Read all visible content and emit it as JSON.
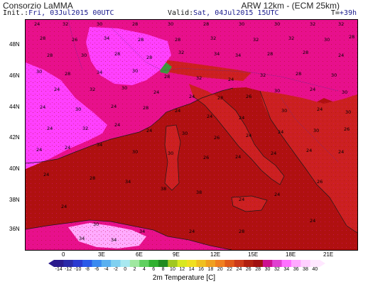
{
  "header": {
    "title_left": "Consorzio LaMMA",
    "title_right": "ARW 12km - (ECM 25km)",
    "init_label": "Init.:",
    "init_value": "Fri, 03Jul2015 00UTC",
    "valid_label": "Valid:",
    "valid_value": "Sat, 04Jul2015 15UTC",
    "lead_label": "T=",
    "lead_value": "+39h"
  },
  "map": {
    "lat_labels": [
      "48N",
      "46N",
      "44N",
      "42N",
      "40N",
      "38N",
      "36N"
    ],
    "lon_labels": [
      "0",
      "3E",
      "6E",
      "9E",
      "12E",
      "15E",
      "18E",
      "21E"
    ],
    "colors": {
      "sea": "#b01010",
      "land_hot": "#e8108c",
      "land_warm": "#cc2020",
      "land_hottest": "#ff40ff",
      "land_cool": "#ffaaff",
      "alps_cold": "#3a9a3a",
      "coast": "#1a1a1a",
      "border": "#6b2a8a"
    },
    "point_values": [
      {
        "v": "24"
      },
      {
        "v": "32"
      },
      {
        "v": "30"
      },
      {
        "v": "28"
      },
      {
        "v": "30"
      },
      {
        "v": "28"
      },
      {
        "v": "30"
      },
      {
        "v": "30"
      },
      {
        "v": "32"
      },
      {
        "v": "32"
      },
      {
        "v": "28"
      },
      {
        "v": "26"
      },
      {
        "v": "34"
      },
      {
        "v": "28"
      },
      {
        "v": "28"
      },
      {
        "v": "32"
      },
      {
        "v": "32"
      },
      {
        "v": "32"
      },
      {
        "v": "30"
      },
      {
        "v": "28"
      },
      {
        "v": "28"
      },
      {
        "v": "30"
      },
      {
        "v": "28"
      },
      {
        "v": "28"
      },
      {
        "v": "32"
      },
      {
        "v": "34"
      },
      {
        "v": "34"
      },
      {
        "v": "28"
      },
      {
        "v": "28"
      },
      {
        "v": "24"
      },
      {
        "v": "30"
      },
      {
        "v": "28"
      },
      {
        "v": "34"
      },
      {
        "v": "30"
      },
      {
        "v": "28"
      },
      {
        "v": "32"
      },
      {
        "v": "24"
      },
      {
        "v": "32"
      },
      {
        "v": "28"
      },
      {
        "v": "30"
      },
      {
        "v": "24"
      },
      {
        "v": "32"
      },
      {
        "v": "30"
      },
      {
        "v": "24"
      },
      {
        "v": "24"
      },
      {
        "v": "28"
      },
      {
        "v": "26"
      },
      {
        "v": "30"
      },
      {
        "v": "24"
      },
      {
        "v": "30"
      },
      {
        "v": "24"
      },
      {
        "v": "30"
      },
      {
        "v": "24"
      },
      {
        "v": "28"
      },
      {
        "v": "24"
      },
      {
        "v": "24"
      },
      {
        "v": "24"
      },
      {
        "v": "30"
      },
      {
        "v": "24"
      },
      {
        "v": "30"
      },
      {
        "v": "24"
      },
      {
        "v": "32"
      },
      {
        "v": "24"
      },
      {
        "v": "24"
      },
      {
        "v": "30"
      },
      {
        "v": "26"
      },
      {
        "v": "24"
      },
      {
        "v": "24"
      },
      {
        "v": "30"
      },
      {
        "v": "26"
      },
      {
        "v": "24"
      },
      {
        "v": "24"
      },
      {
        "v": "34"
      },
      {
        "v": "30"
      },
      {
        "v": "30"
      },
      {
        "v": "26"
      },
      {
        "v": "24"
      },
      {
        "v": "24"
      },
      {
        "v": "24"
      },
      {
        "v": "24"
      },
      {
        "v": "24"
      },
      {
        "v": "28"
      },
      {
        "v": "34"
      },
      {
        "v": "38"
      },
      {
        "v": "38"
      },
      {
        "v": "24"
      },
      {
        "v": "24"
      },
      {
        "v": "26"
      },
      {
        "v": "24"
      },
      {
        "v": "30"
      },
      {
        "v": "34"
      },
      {
        "v": "34"
      },
      {
        "v": "34"
      },
      {
        "v": "24"
      },
      {
        "v": "28"
      },
      {
        "v": "24"
      }
    ]
  },
  "colorbar": {
    "labels": [
      "-14",
      "-12",
      "-10",
      "-8",
      "-6",
      "-4",
      "-2",
      "0",
      "2",
      "4",
      "6",
      "8",
      "10",
      "12",
      "14",
      "16",
      "18",
      "20",
      "22",
      "24",
      "26",
      "28",
      "30",
      "32",
      "34",
      "36",
      "38",
      "40"
    ],
    "colors": [
      "#2a1a8c",
      "#2a2aa8",
      "#2a3ad0",
      "#2a5ae8",
      "#3a8af0",
      "#5ab0f0",
      "#80d0f0",
      "#a8e8f0",
      "#a0e8a0",
      "#60d060",
      "#30b030",
      "#208a20",
      "#a0c820",
      "#d8e820",
      "#f0e020",
      "#f0c020",
      "#f0a020",
      "#f08020",
      "#e05a1a",
      "#cc3a1a",
      "#b02010",
      "#a01010",
      "#cc1090",
      "#e040d0",
      "#ff70ff",
      "#ffa8ff",
      "#ffd0ff",
      "#ffe8ff"
    ],
    "title": "2m Temperature [C]"
  }
}
